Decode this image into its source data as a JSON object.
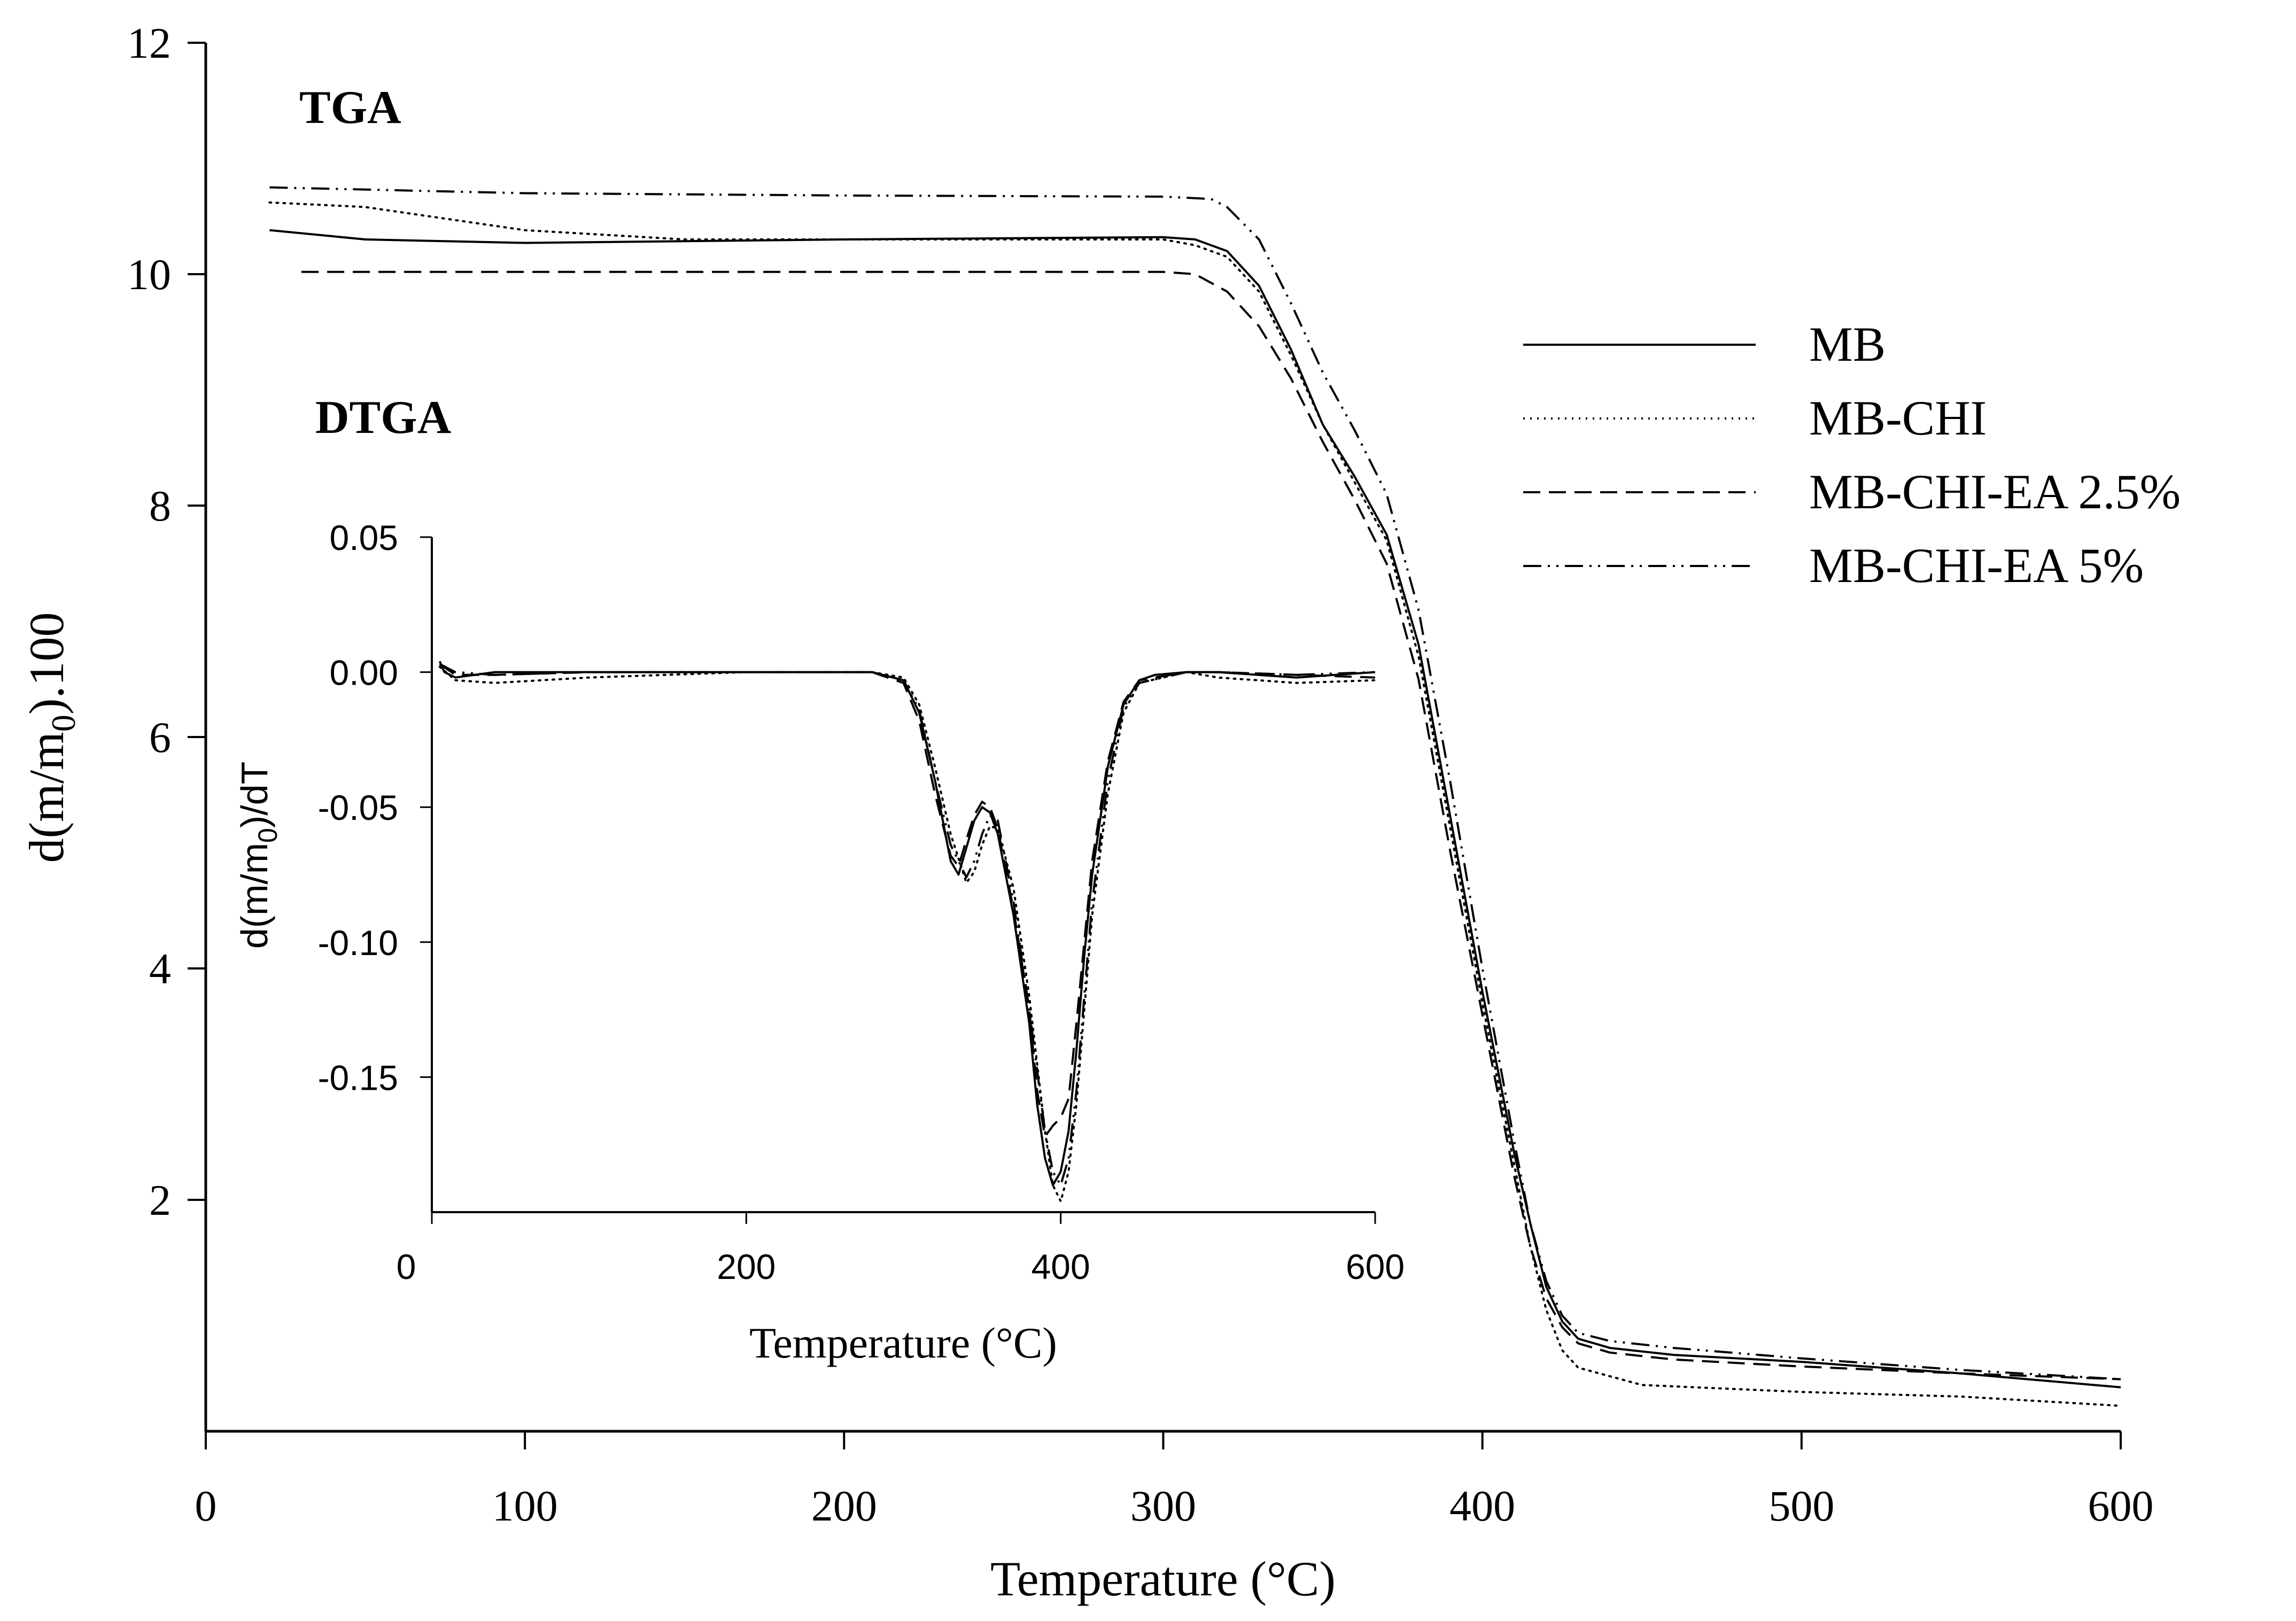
{
  "chart_data": [
    {
      "id": "tga",
      "type": "line",
      "title": "TGA",
      "xlabel": "Temperature (°C)",
      "ylabel": "d(m/m0).100",
      "xlim": [
        0,
        600
      ],
      "ylim": [
        0,
        12
      ],
      "xticks": [
        "0",
        "100",
        "200",
        "300",
        "400",
        "500",
        "600"
      ],
      "yticks": [
        "2",
        "4",
        "6",
        "8",
        "10",
        "12"
      ],
      "legend_position": "right",
      "series": [
        {
          "name": "MB",
          "style": "solid",
          "x": [
            20,
            50,
            100,
            200,
            300,
            310,
            320,
            330,
            340,
            350,
            360,
            370,
            380,
            390,
            400,
            410,
            415,
            420,
            425,
            430,
            440,
            460,
            500,
            550,
            600
          ],
          "y": [
            10.38,
            10.3,
            10.27,
            10.3,
            10.32,
            10.3,
            10.2,
            9.9,
            9.35,
            8.7,
            8.25,
            7.75,
            6.8,
            5.3,
            3.8,
            2.4,
            1.8,
            1.25,
            0.95,
            0.8,
            0.72,
            0.66,
            0.6,
            0.5,
            0.38
          ]
        },
        {
          "name": "MB-CHI",
          "style": "dotted",
          "x": [
            20,
            50,
            100,
            150,
            200,
            300,
            310,
            320,
            330,
            340,
            350,
            360,
            370,
            380,
            390,
            400,
            410,
            415,
            420,
            425,
            430,
            450,
            500,
            550,
            600
          ],
          "y": [
            10.62,
            10.58,
            10.38,
            10.3,
            10.3,
            10.3,
            10.25,
            10.15,
            9.85,
            9.3,
            8.7,
            8.2,
            7.7,
            6.7,
            5.2,
            3.7,
            2.3,
            1.6,
            1.05,
            0.7,
            0.55,
            0.4,
            0.34,
            0.3,
            0.22
          ]
        },
        {
          "name": "MB-CHI-EA 2.5%",
          "style": "dashed",
          "x": [
            30,
            100,
            200,
            300,
            310,
            320,
            330,
            340,
            350,
            360,
            370,
            380,
            390,
            400,
            410,
            415,
            420,
            425,
            430,
            440,
            460,
            500,
            550,
            600
          ],
          "y": [
            10.02,
            10.02,
            10.02,
            10.02,
            10.0,
            9.85,
            9.55,
            9.1,
            8.55,
            8.05,
            7.5,
            6.5,
            5.0,
            3.6,
            2.2,
            1.6,
            1.15,
            0.9,
            0.76,
            0.68,
            0.62,
            0.56,
            0.5,
            0.45
          ]
        },
        {
          "name": "MB-CHI-EA 5%",
          "style": "dashdotdot",
          "x": [
            20,
            100,
            200,
            300,
            315,
            320,
            330,
            340,
            350,
            360,
            370,
            380,
            390,
            400,
            410,
            415,
            420,
            425,
            430,
            440,
            460,
            500,
            550,
            600
          ],
          "y": [
            10.75,
            10.7,
            10.68,
            10.67,
            10.65,
            10.58,
            10.3,
            9.75,
            9.15,
            8.65,
            8.1,
            7.1,
            5.6,
            4.0,
            2.5,
            1.8,
            1.3,
            1.0,
            0.85,
            0.78,
            0.72,
            0.63,
            0.53,
            0.45
          ]
        }
      ]
    },
    {
      "id": "dtga",
      "type": "line",
      "title": "DTGA",
      "xlabel": "Temperature (°C)",
      "ylabel": "d(m/m0)/dT",
      "xlim": [
        0,
        600
      ],
      "ylim": [
        -0.2,
        0.05
      ],
      "xticks": [
        "0",
        "200",
        "400",
        "600"
      ],
      "yticks": [
        "0.05",
        "0.00",
        "-0.05",
        "-0.10",
        "-0.15"
      ],
      "series": [
        {
          "name": "MB",
          "style": "solid",
          "x": [
            5,
            8,
            15,
            40,
            100,
            200,
            280,
            300,
            310,
            320,
            330,
            335,
            340,
            345,
            350,
            355,
            360,
            370,
            380,
            385,
            390,
            395,
            400,
            405,
            410,
            415,
            420,
            430,
            440,
            450,
            460,
            480,
            500,
            550,
            600
          ],
          "y": [
            0.004,
            0.0,
            -0.002,
            0.0,
            0.0,
            0.0,
            0.0,
            -0.003,
            -0.015,
            -0.04,
            -0.07,
            -0.075,
            -0.065,
            -0.055,
            -0.05,
            -0.052,
            -0.06,
            -0.09,
            -0.13,
            -0.16,
            -0.18,
            -0.19,
            -0.185,
            -0.17,
            -0.14,
            -0.105,
            -0.075,
            -0.035,
            -0.012,
            -0.003,
            -0.001,
            0.0,
            0.0,
            -0.002,
            0.0
          ]
        },
        {
          "name": "MB-CHI",
          "style": "dotted",
          "x": [
            5,
            15,
            40,
            100,
            200,
            280,
            300,
            310,
            320,
            330,
            340,
            345,
            350,
            355,
            360,
            370,
            380,
            390,
            395,
            400,
            405,
            410,
            415,
            420,
            430,
            440,
            450,
            480,
            500,
            550,
            600
          ],
          "y": [
            0.002,
            -0.003,
            -0.004,
            -0.002,
            0.0,
            0.0,
            -0.002,
            -0.012,
            -0.035,
            -0.06,
            -0.078,
            -0.074,
            -0.064,
            -0.057,
            -0.058,
            -0.08,
            -0.12,
            -0.17,
            -0.19,
            -0.196,
            -0.185,
            -0.16,
            -0.125,
            -0.09,
            -0.045,
            -0.015,
            -0.004,
            0.0,
            -0.002,
            -0.004,
            -0.003
          ]
        },
        {
          "name": "MB-CHI-EA 2.5%",
          "style": "dashed",
          "x": [
            5,
            15,
            40,
            100,
            200,
            280,
            300,
            310,
            320,
            330,
            335,
            340,
            345,
            350,
            355,
            360,
            370,
            380,
            385,
            390,
            395,
            400,
            405,
            410,
            415,
            420,
            430,
            440,
            450,
            480,
            500,
            550,
            600
          ],
          "y": [
            0.003,
            -0.001,
            -0.001,
            0.0,
            0.0,
            0.0,
            -0.004,
            -0.018,
            -0.045,
            -0.068,
            -0.072,
            -0.062,
            -0.053,
            -0.048,
            -0.05,
            -0.058,
            -0.088,
            -0.125,
            -0.155,
            -0.172,
            -0.168,
            -0.165,
            -0.158,
            -0.13,
            -0.1,
            -0.07,
            -0.033,
            -0.011,
            -0.003,
            0.0,
            0.0,
            -0.001,
            -0.002
          ]
        },
        {
          "name": "MB-CHI-EA 5%",
          "style": "dashdotdot",
          "x": [
            5,
            15,
            40,
            100,
            200,
            280,
            300,
            310,
            320,
            330,
            340,
            345,
            350,
            355,
            360,
            370,
            380,
            390,
            395,
            400,
            405,
            410,
            415,
            420,
            430,
            440,
            450,
            480,
            500,
            550,
            600
          ],
          "y": [
            0.003,
            0.0,
            -0.001,
            0.0,
            0.0,
            0.0,
            -0.003,
            -0.014,
            -0.04,
            -0.064,
            -0.076,
            -0.07,
            -0.06,
            -0.053,
            -0.055,
            -0.085,
            -0.125,
            -0.17,
            -0.185,
            -0.19,
            -0.18,
            -0.155,
            -0.12,
            -0.085,
            -0.04,
            -0.013,
            -0.004,
            0.0,
            0.0,
            -0.001,
            0.0
          ]
        }
      ]
    }
  ]
}
